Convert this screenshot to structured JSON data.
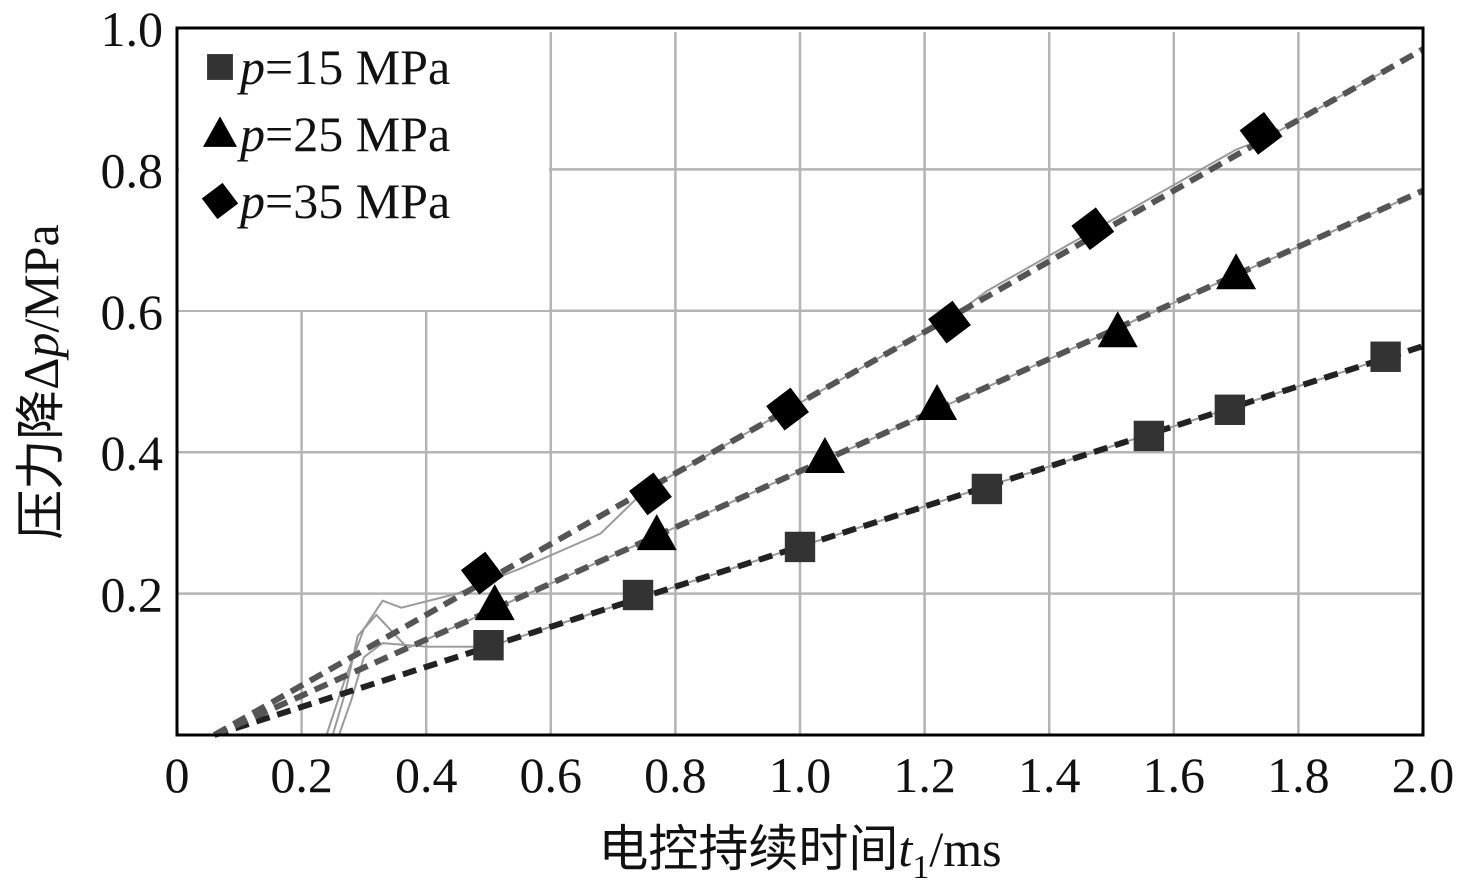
{
  "chart_data": {
    "type": "line",
    "title": "",
    "xlabel": "电控持续时间t1/ms",
    "xlabel_parts": {
      "main": "电控持续时间",
      "var": "t",
      "sub": "1",
      "unit": "/ms"
    },
    "ylabel": "压力降Δp/MPa",
    "ylabel_parts": {
      "main": "压力降Δ",
      "var": "p",
      "unit": "/MPa"
    },
    "xlim": [
      0,
      2.0
    ],
    "ylim": [
      0,
      1.0
    ],
    "x_ticks": [
      "0",
      "0.2",
      "0.4",
      "0.6",
      "0.8",
      "1.0",
      "1.2",
      "1.4",
      "1.6",
      "1.8",
      "2.0"
    ],
    "y_ticks": [
      "0.2",
      "0.4",
      "0.6",
      "0.8",
      "1.0"
    ],
    "grid": true,
    "legend_position": "upper-left",
    "series": [
      {
        "name": "p=15 MPa",
        "label_var": "p",
        "label_value": "=15 MPa",
        "marker": "square",
        "color": "#333333",
        "x": [
          0.5,
          0.74,
          1.0,
          1.3,
          1.56,
          1.69,
          1.94
        ],
        "values": [
          0.127,
          0.198,
          0.266,
          0.348,
          0.423,
          0.46,
          0.535
        ],
        "fit_line": {
          "x": [
            0.06,
            2.0
          ],
          "y": [
            0.0,
            0.55
          ]
        }
      },
      {
        "name": "p=25 MPa",
        "label_var": "p",
        "label_value": "=25 MPa",
        "marker": "triangle",
        "color": "#000000",
        "x": [
          0.51,
          0.77,
          1.04,
          1.22,
          1.51,
          1.7
        ],
        "values": [
          0.184,
          0.283,
          0.392,
          0.467,
          0.57,
          0.652
        ],
        "fit_line": {
          "x": [
            0.06,
            2.0
          ],
          "y": [
            0.0,
            0.77
          ]
        }
      },
      {
        "name": "p=35 MPa",
        "label_var": "p",
        "label_value": "=35 MPa",
        "marker": "diamond",
        "color": "#000000",
        "x": [
          0.49,
          0.76,
          0.98,
          1.24,
          1.47,
          1.74
        ],
        "values": [
          0.229,
          0.341,
          0.461,
          0.584,
          0.716,
          0.851
        ],
        "fit_line": {
          "x": [
            0.06,
            2.0
          ],
          "y": [
            0.0,
            0.97
          ]
        }
      }
    ],
    "colors": {
      "grid": "#b4b4b4",
      "axis": "#000000",
      "fit_line_15": "#222222",
      "fit_line_25": "#555555",
      "fit_line_35": "#555555",
      "sim_curve": "#9a9a9a"
    }
  }
}
